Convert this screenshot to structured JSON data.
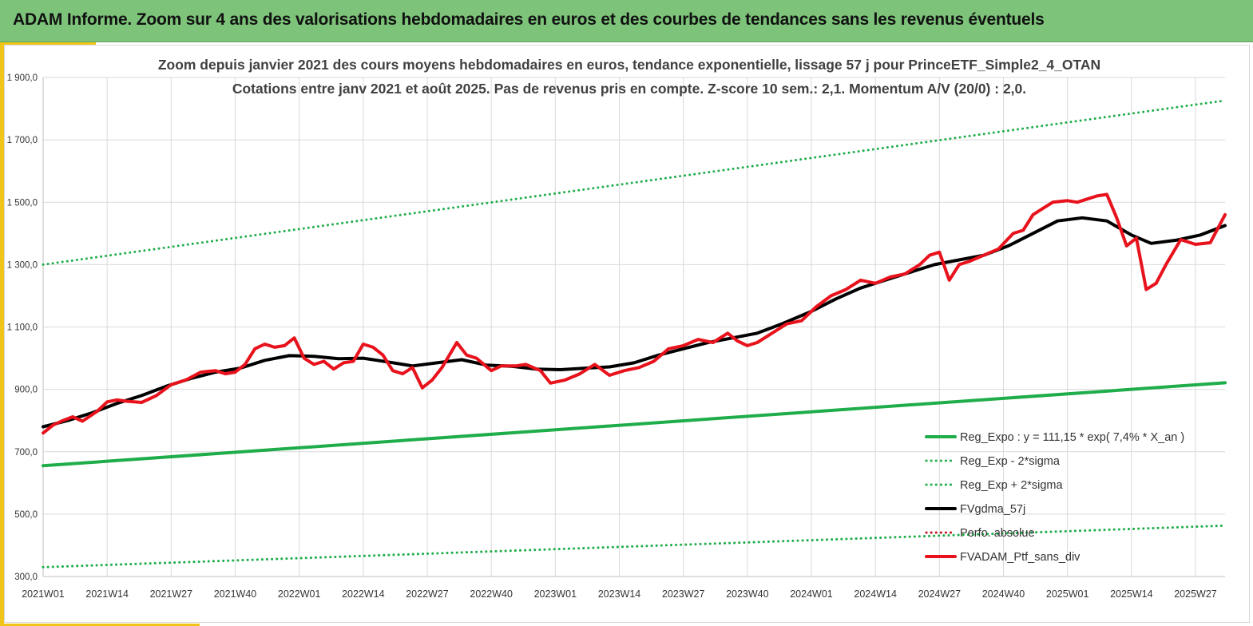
{
  "header": {
    "title": "ADAM Informe. Zoom sur 4 ans des valorisations hebdomadaires en euros et des courbes de tendances sans les revenus éventuels"
  },
  "colors": {
    "header_bg": "#7dc47a",
    "accent": "#f0c419",
    "trend_green": "#1fad4a",
    "smooth_black": "#000000",
    "portfolio_red": "#e8121c",
    "perf_red": "#c0161d",
    "grid": "#d9d9d9"
  },
  "chart_data": {
    "type": "line",
    "title_lines": [
      "Zoom depuis janvier 2021 des cours moyens hebdomadaires  en euros, tendance exponentielle, lissage 57 j pour PrinceETF_Simple2_4_OTAN",
      "Cotations entre janv 2021 et août 2025. Pas de revenus pris en compte. Z-score 10 sem.: 2,1. Momentum A/V (20/0) : 2,0."
    ],
    "xlabel": "",
    "ylabel": "",
    "x_axis": {
      "unit": "week",
      "range": [
        "2021W01",
        "2025W33"
      ],
      "tick_labels": [
        "2021W01",
        "2021W14",
        "2021W27",
        "2021W40",
        "2022W01",
        "2022W14",
        "2022W27",
        "2022W40",
        "2023W01",
        "2023W14",
        "2023W27",
        "2023W40",
        "2024W01",
        "2024W14",
        "2024W27",
        "2024W40",
        "2025W01",
        "2025W14",
        "2025W27"
      ]
    },
    "y_axis": {
      "ylim": [
        300,
        1900
      ],
      "tick_values": [
        300,
        500,
        700,
        900,
        1100,
        1300,
        1500,
        1700,
        1900
      ],
      "tick_labels": [
        "300,0",
        "500,0",
        "700,0",
        "900,0",
        "1 100,0",
        "1 300,0",
        "1 500,0",
        "1 700,0",
        "1 900,0"
      ]
    },
    "grid": true,
    "legend_position": "bottom-right",
    "series": [
      {
        "name": "Reg_Expo : y = 111,15 * exp( 7,4% *  X_an )",
        "style": "solid-thick",
        "color": "#1fad4a",
        "x": [
          "2021W01",
          "2025W33"
        ],
        "y": [
          655,
          921
        ]
      },
      {
        "name": "Reg_Exp - 2*sigma",
        "style": "dotted",
        "color": "#1fad4a",
        "x": [
          "2021W01",
          "2025W33"
        ],
        "y": [
          330,
          463
        ]
      },
      {
        "name": "Reg_Exp + 2*sigma",
        "style": "dotted",
        "color": "#1fad4a",
        "x": [
          "2021W01",
          "2025W33"
        ],
        "y": [
          1300,
          1826
        ]
      },
      {
        "name": "FVgdma_57j",
        "style": "solid-thick",
        "color": "#000000",
        "x": [
          "2021W01",
          "2021W06",
          "2021W11",
          "2021W16",
          "2021W21",
          "2021W26",
          "2021W31",
          "2021W36",
          "2021W41",
          "2021W46",
          "2021W51",
          "2022W04",
          "2022W09",
          "2022W14",
          "2022W19",
          "2022W24",
          "2022W29",
          "2022W34",
          "2022W39",
          "2022W44",
          "2022W49",
          "2023W02",
          "2023W07",
          "2023W12",
          "2023W17",
          "2023W22",
          "2023W27",
          "2023W32",
          "2023W37",
          "2023W42",
          "2023W47",
          "2024W01",
          "2024W06",
          "2024W11",
          "2024W16",
          "2024W21",
          "2024W26",
          "2024W31",
          "2024W36",
          "2024W41",
          "2024W46",
          "2024W51",
          "2025W04",
          "2025W09",
          "2025W14",
          "2025W18",
          "2025W23",
          "2025W28",
          "2025W33"
        ],
        "y": [
          780,
          800,
          825,
          855,
          880,
          910,
          935,
          955,
          968,
          993,
          1008,
          1006,
          998,
          1000,
          988,
          975,
          985,
          995,
          978,
          974,
          965,
          963,
          968,
          972,
          985,
          1010,
          1030,
          1050,
          1065,
          1080,
          1110,
          1150,
          1190,
          1225,
          1250,
          1275,
          1300,
          1315,
          1330,
          1360,
          1400,
          1440,
          1450,
          1440,
          1395,
          1368,
          1378,
          1395,
          1425
        ]
      },
      {
        "name": "Perfo. absolue",
        "style": "dotted",
        "color": "#c0161d",
        "x": [],
        "y": []
      },
      {
        "name": "FVADAM_Ptf_sans_div",
        "style": "solid-thick",
        "color": "#e8121c",
        "x": [
          "2021W01",
          "2021W03",
          "2021W05",
          "2021W07",
          "2021W09",
          "2021W12",
          "2021W14",
          "2021W16",
          "2021W18",
          "2021W21",
          "2021W24",
          "2021W27",
          "2021W30",
          "2021W33",
          "2021W36",
          "2021W38",
          "2021W40",
          "2021W42",
          "2021W44",
          "2021W46",
          "2021W48",
          "2021W50",
          "2021W52",
          "2022W02",
          "2022W04",
          "2022W06",
          "2022W08",
          "2022W10",
          "2022W12",
          "2022W14",
          "2022W16",
          "2022W18",
          "2022W20",
          "2022W22",
          "2022W24",
          "2022W26",
          "2022W28",
          "2022W30",
          "2022W33",
          "2022W35",
          "2022W37",
          "2022W40",
          "2022W42",
          "2022W45",
          "2022W47",
          "2022W50",
          "2022W52",
          "2023W03",
          "2023W06",
          "2023W09",
          "2023W12",
          "2023W15",
          "2023W18",
          "2023W21",
          "2023W24",
          "2023W27",
          "2023W30",
          "2023W33",
          "2023W36",
          "2023W38",
          "2023W40",
          "2023W42",
          "2023W45",
          "2023W48",
          "2023W51",
          "2024W02",
          "2024W05",
          "2024W08",
          "2024W11",
          "2024W14",
          "2024W17",
          "2024W20",
          "2024W23",
          "2024W25",
          "2024W27",
          "2024W29",
          "2024W31",
          "2024W33",
          "2024W36",
          "2024W39",
          "2024W42",
          "2024W44",
          "2024W46",
          "2024W48",
          "2024W50",
          "2025W01",
          "2025W03",
          "2025W05",
          "2025W07",
          "2025W09",
          "2025W11",
          "2025W13",
          "2025W15",
          "2025W17",
          "2025W19",
          "2025W21",
          "2025W24",
          "2025W27",
          "2025W30",
          "2025W33"
        ],
        "y": [
          760,
          785,
          800,
          812,
          798,
          830,
          860,
          866,
          862,
          858,
          880,
          915,
          930,
          955,
          960,
          950,
          955,
          980,
          1030,
          1045,
          1035,
          1040,
          1065,
          1000,
          980,
          990,
          965,
          985,
          990,
          1045,
          1035,
          1010,
          960,
          950,
          970,
          905,
          930,
          970,
          1050,
          1010,
          1000,
          960,
          975,
          975,
          980,
          960,
          920,
          930,
          950,
          980,
          945,
          960,
          970,
          990,
          1030,
          1040,
          1060,
          1050,
          1080,
          1055,
          1040,
          1050,
          1080,
          1110,
          1120,
          1165,
          1200,
          1220,
          1250,
          1240,
          1260,
          1270,
          1300,
          1330,
          1340,
          1250,
          1300,
          1310,
          1330,
          1350,
          1400,
          1410,
          1460,
          1480,
          1500,
          1505,
          1500,
          1510,
          1520,
          1525,
          1450,
          1360,
          1385,
          1220,
          1240,
          1300,
          1380,
          1365,
          1370,
          1460
        ]
      }
    ]
  }
}
